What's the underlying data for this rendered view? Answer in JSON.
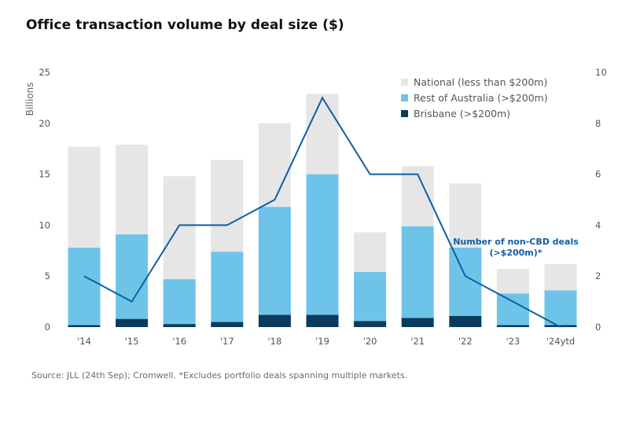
{
  "chart_data": {
    "type": "bar",
    "stacked": true,
    "title": "Office transaction volume by deal size ($)",
    "ylabel": "Billions",
    "ylim": [
      0,
      25
    ],
    "y_ticks": [
      0,
      5,
      10,
      15,
      20,
      25
    ],
    "y2lim": [
      0,
      10
    ],
    "y2_ticks": [
      0,
      2,
      4,
      6,
      8,
      10
    ],
    "grid": false,
    "legend_position": "top-right",
    "categories": [
      "'14",
      "'15",
      "'16",
      "'17",
      "'18",
      "'19",
      "'20",
      "'21",
      "'22",
      "'23",
      "'24ytd"
    ],
    "series": [
      {
        "name": "Brisbane (>$200m)",
        "color": "#0b3b5c",
        "values": [
          0.2,
          0.8,
          0.3,
          0.5,
          1.2,
          1.2,
          0.6,
          0.9,
          1.1,
          0.2,
          0.2
        ]
      },
      {
        "name": "Rest of Australia (>$200m)",
        "color": "#6ec4e8",
        "values": [
          7.6,
          8.3,
          4.4,
          6.9,
          10.6,
          13.8,
          4.8,
          9.0,
          6.7,
          3.1,
          3.4
        ]
      },
      {
        "name": "National (less than $200m)",
        "color": "#e6e6e6",
        "values": [
          9.9,
          8.8,
          10.1,
          9.0,
          8.2,
          7.9,
          3.9,
          5.9,
          6.3,
          2.4,
          2.6
        ]
      }
    ],
    "line_series": {
      "name": "Number of non-CBD deals (>$200m)*",
      "axis": "secondary",
      "color": "#0e5fa6",
      "values": [
        2,
        1,
        4,
        4,
        5,
        9,
        6,
        6,
        2,
        1,
        0
      ]
    },
    "annotation": {
      "line1": "Number of non-CBD deals",
      "line2": "(>$200m)*"
    }
  },
  "source_text": "Source: JLL (24th Sep); Cromwell. *Excludes portfolio deals spanning multiple markets."
}
